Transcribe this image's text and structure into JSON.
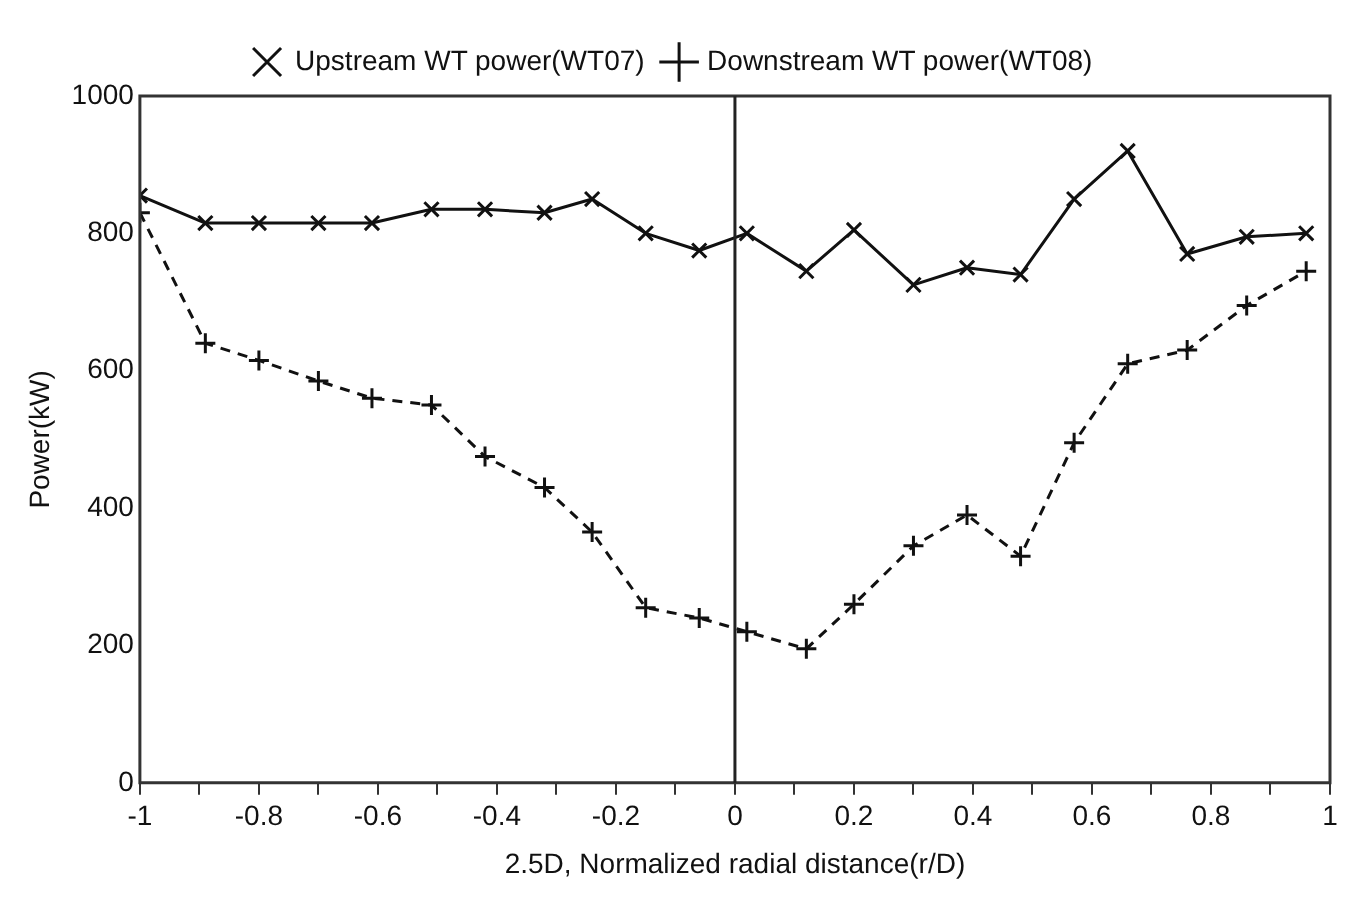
{
  "chart_data": {
    "type": "line",
    "xlabel": "2.5D, Normalized radial distance(r/D)",
    "ylabel": "Power(kW)",
    "xlim": [
      -1,
      1
    ],
    "xticks": [
      -1,
      {
        "value": -0.9,
        "label": null
      },
      -0.8,
      {
        "value": -0.7,
        "label": null
      },
      -0.6,
      {
        "value": -0.5,
        "label": null
      },
      -0.4,
      {
        "value": -0.3,
        "label": null
      },
      -0.2,
      {
        "value": -0.1,
        "label": null
      },
      0,
      {
        "value": 0.1,
        "label": null
      },
      0.2,
      {
        "value": 0.3,
        "label": null
      },
      0.4,
      {
        "value": 0.5,
        "label": null
      },
      0.6,
      {
        "value": 0.7,
        "label": null
      },
      0.8,
      {
        "value": 0.9,
        "label": null
      },
      1
    ],
    "ylim": [
      0,
      1000
    ],
    "yticks": [
      0,
      200,
      400,
      600,
      800,
      1000
    ],
    "grid": false,
    "legend": "top",
    "ref_lines": [
      {
        "axis": "x",
        "value": 0,
        "color": "#222222"
      }
    ],
    "series": [
      {
        "name": "Upstream WT power(WT07)",
        "color": "#111111",
        "marker": "cross",
        "line_style": "solid",
        "x": [
          -1,
          -0.89,
          -0.8,
          -0.7,
          -0.61,
          -0.51,
          -0.42,
          -0.32,
          -0.24,
          -0.15,
          -0.06,
          0.02,
          0.12,
          0.2,
          0.3,
          0.39,
          0.48,
          0.57,
          0.66,
          0.76,
          0.86,
          0.96
        ],
        "values": [
          855,
          815,
          815,
          815,
          815,
          835,
          835,
          830,
          850,
          800,
          775,
          800,
          745,
          805,
          725,
          750,
          740,
          850,
          920,
          770,
          795,
          800
        ]
      },
      {
        "name": "Downstream WT power(WT08)",
        "color": "#111111",
        "marker": "plus",
        "line_style": "dashed",
        "x": [
          -1,
          -0.89,
          -0.8,
          -0.7,
          -0.61,
          -0.51,
          -0.42,
          -0.32,
          -0.24,
          -0.15,
          -0.06,
          0.02,
          0.12,
          0.2,
          0.3,
          0.39,
          0.48,
          0.57,
          0.66,
          0.76,
          0.86,
          0.96
        ],
        "values": [
          830,
          640,
          615,
          585,
          560,
          550,
          475,
          430,
          365,
          255,
          240,
          220,
          195,
          260,
          345,
          390,
          330,
          495,
          610,
          630,
          695,
          745
        ]
      }
    ]
  }
}
